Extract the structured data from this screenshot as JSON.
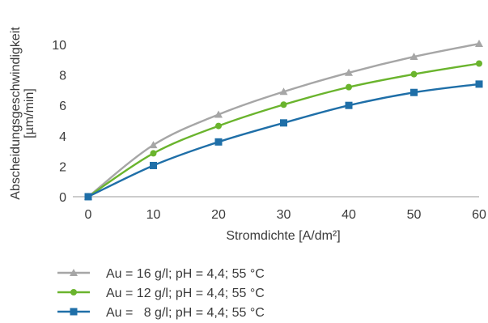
{
  "chart_data": {
    "type": "line",
    "x": [
      0,
      10,
      20,
      30,
      40,
      50,
      60
    ],
    "xlim": [
      0,
      60
    ],
    "ylim": [
      0,
      10
    ],
    "xticks": [
      0,
      10,
      20,
      30,
      40,
      50,
      60
    ],
    "yticks": [
      0,
      2,
      4,
      6,
      8,
      10
    ],
    "xlabel": "Stromdichte [A/dm²]",
    "ylabel": [
      "Abscheidungsgeschwindigkeit",
      "[µm/min]"
    ],
    "grid": false,
    "legend_position": "bottom",
    "series": [
      {
        "name": "Au = 16 g/l; pH = 4,4; 55 °C",
        "marker": "triangle",
        "color": "#a6a6a6",
        "values": [
          0,
          3.4,
          5.4,
          6.9,
          8.15,
          9.2,
          10.05
        ]
      },
      {
        "name": "Au = 12 g/l; pH = 4,4; 55 °C",
        "marker": "circle",
        "color": "#6ab42d",
        "values": [
          0,
          2.85,
          4.65,
          6.05,
          7.2,
          8.05,
          8.75
        ]
      },
      {
        "name": "Au =   8 g/l; pH = 4,4; 55 °C",
        "marker": "square",
        "color": "#1f6fa8",
        "values": [
          0,
          2.05,
          3.6,
          4.85,
          6.0,
          6.85,
          7.4
        ]
      }
    ]
  }
}
